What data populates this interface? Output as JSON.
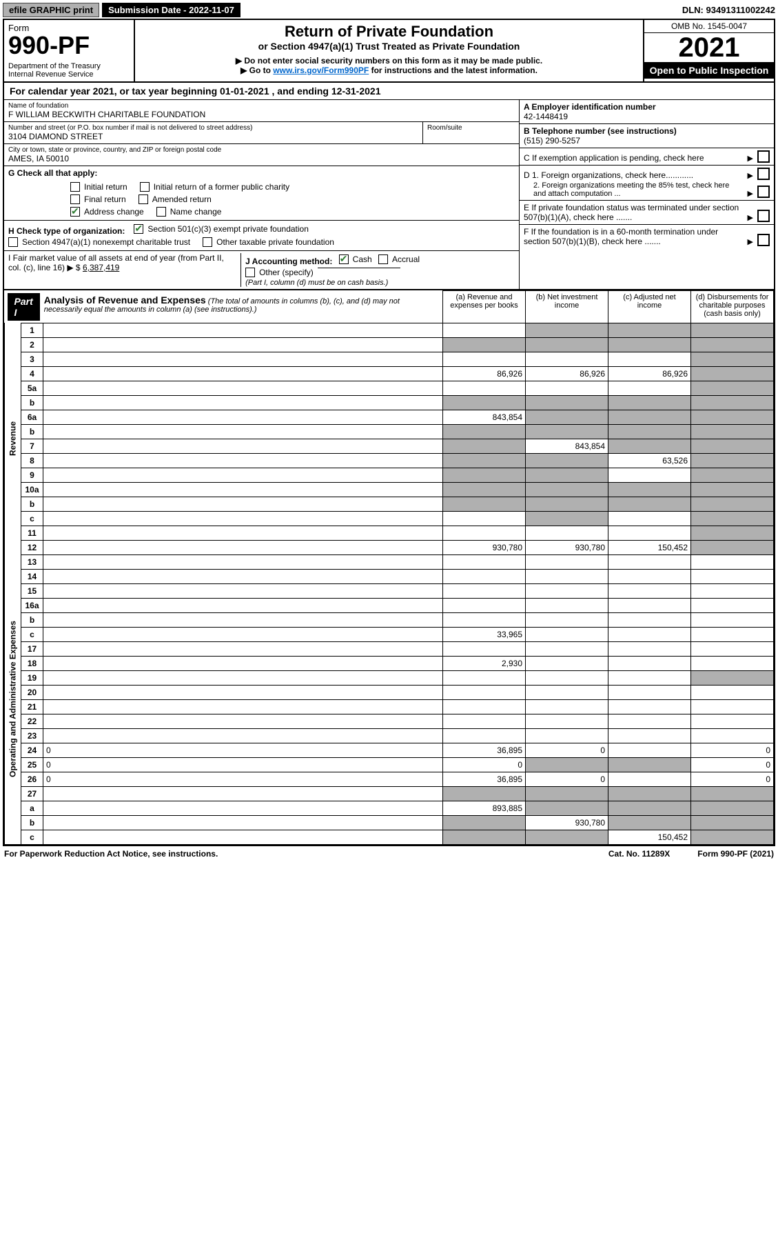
{
  "topbar": {
    "efile_label": "efile GRAPHIC print",
    "submission_label": "Submission Date - 2022-11-07",
    "dln_label": "DLN: 93491311002242"
  },
  "header": {
    "form_label": "Form",
    "form_number": "990-PF",
    "dept": "Department of the Treasury",
    "irs": "Internal Revenue Service",
    "title": "Return of Private Foundation",
    "subtitle": "or Section 4947(a)(1) Trust Treated as Private Foundation",
    "note1": "▶ Do not enter social security numbers on this form as it may be made public.",
    "note2_prefix": "▶ Go to ",
    "note2_link": "www.irs.gov/Form990PF",
    "note2_suffix": " for instructions and the latest information.",
    "omb": "OMB No. 1545-0047",
    "year": "2021",
    "open_public": "Open to Public Inspection"
  },
  "calyear": {
    "prefix": "For calendar year 2021, or tax year beginning ",
    "begin": "01-01-2021",
    "mid": " , and ending ",
    "end": "12-31-2021"
  },
  "entity": {
    "name_label": "Name of foundation",
    "name": "F WILLIAM BECKWITH CHARITABLE FOUNDATION",
    "addr_label": "Number and street (or P.O. box number if mail is not delivered to street address)",
    "addr": "3104 DIAMOND STREET",
    "room_label": "Room/suite",
    "city_label": "City or town, state or province, country, and ZIP or foreign postal code",
    "city": "AMES, IA  50010",
    "ein_label": "A Employer identification number",
    "ein": "42-1448419",
    "phone_label": "B Telephone number (see instructions)",
    "phone": "(515) 290-5257",
    "c_label": "C If exemption application is pending, check here",
    "d1_label": "D 1. Foreign organizations, check here............",
    "d2_label": "2. Foreign organizations meeting the 85% test, check here and attach computation ...",
    "e_label": "E If private foundation status was terminated under section 507(b)(1)(A), check here .......",
    "f_label": "F If the foundation is in a 60-month termination under section 507(b)(1)(B), check here .......",
    "g_label": "G Check all that apply:",
    "g_opts": {
      "initial": "Initial return",
      "initial_former": "Initial return of a former public charity",
      "final": "Final return",
      "amended": "Amended return",
      "addr_change": "Address change",
      "name_change": "Name change"
    },
    "h_label": "H Check type of organization:",
    "h_opts": {
      "s501c3": "Section 501(c)(3) exempt private foundation",
      "s4947": "Section 4947(a)(1) nonexempt charitable trust",
      "other_tax": "Other taxable private foundation"
    },
    "i_label": "I Fair market value of all assets at end of year (from Part II, col. (c), line 16) ▶ $",
    "i_value": "6,387,419",
    "j_label": "J Accounting method:",
    "j_cash": "Cash",
    "j_accr": "Accrual",
    "j_other": "Other (specify)",
    "j_note": "(Part I, column (d) must be on cash basis.)"
  },
  "part1": {
    "tab": "Part I",
    "title": "Analysis of Revenue and Expenses",
    "desc": "(The total of amounts in columns (b), (c), and (d) may not necessarily equal the amounts in column (a) (see instructions).)",
    "col_a": "(a) Revenue and expenses per books",
    "col_b": "(b) Net investment income",
    "col_c": "(c) Adjusted net income",
    "col_d": "(d) Disbursements for charitable purposes (cash basis only)",
    "side_rev": "Revenue",
    "side_exp": "Operating and Administrative Expenses",
    "rows": [
      {
        "n": "1",
        "d": "",
        "a": "",
        "b": "",
        "c": "",
        "shade_b": true,
        "shade_c": true,
        "shade_d": true
      },
      {
        "n": "2",
        "d": "",
        "a": "",
        "b": "",
        "c": "",
        "shade_a": true,
        "shade_b": true,
        "shade_c": true,
        "shade_d": true
      },
      {
        "n": "3",
        "d": "",
        "a": "",
        "b": "",
        "c": "",
        "shade_d": true
      },
      {
        "n": "4",
        "d": "",
        "a": "86,926",
        "b": "86,926",
        "c": "86,926",
        "shade_d": true
      },
      {
        "n": "5a",
        "d": "",
        "a": "",
        "b": "",
        "c": "",
        "shade_d": true
      },
      {
        "n": "b",
        "d": "",
        "a": "",
        "b": "",
        "c": "",
        "shade_a": true,
        "shade_b": true,
        "shade_c": true,
        "shade_d": true
      },
      {
        "n": "6a",
        "d": "",
        "a": "843,854",
        "b": "",
        "c": "",
        "shade_b": true,
        "shade_c": true,
        "shade_d": true
      },
      {
        "n": "b",
        "d": "",
        "a": "",
        "b": "",
        "c": "",
        "shade_a": true,
        "shade_b": true,
        "shade_c": true,
        "shade_d": true
      },
      {
        "n": "7",
        "d": "",
        "a": "",
        "b": "843,854",
        "c": "",
        "shade_a": true,
        "shade_c": true,
        "shade_d": true
      },
      {
        "n": "8",
        "d": "",
        "a": "",
        "b": "",
        "c": "63,526",
        "shade_a": true,
        "shade_b": true,
        "shade_d": true
      },
      {
        "n": "9",
        "d": "",
        "a": "",
        "b": "",
        "c": "",
        "shade_a": true,
        "shade_b": true,
        "shade_d": true
      },
      {
        "n": "10a",
        "d": "",
        "a": "",
        "b": "",
        "c": "",
        "shade_a": true,
        "shade_b": true,
        "shade_c": true,
        "shade_d": true
      },
      {
        "n": "b",
        "d": "",
        "a": "",
        "b": "",
        "c": "",
        "shade_a": true,
        "shade_b": true,
        "shade_c": true,
        "shade_d": true
      },
      {
        "n": "c",
        "d": "",
        "a": "",
        "b": "",
        "c": "",
        "shade_b": true,
        "shade_d": true
      },
      {
        "n": "11",
        "d": "",
        "a": "",
        "b": "",
        "c": "",
        "shade_d": true
      },
      {
        "n": "12",
        "d": "",
        "a": "930,780",
        "b": "930,780",
        "c": "150,452",
        "shade_d": true,
        "bold": true
      },
      {
        "n": "13",
        "d": "",
        "a": "",
        "b": "",
        "c": ""
      },
      {
        "n": "14",
        "d": "",
        "a": "",
        "b": "",
        "c": ""
      },
      {
        "n": "15",
        "d": "",
        "a": "",
        "b": "",
        "c": ""
      },
      {
        "n": "16a",
        "d": "",
        "a": "",
        "b": "",
        "c": ""
      },
      {
        "n": "b",
        "d": "",
        "a": "",
        "b": "",
        "c": ""
      },
      {
        "n": "c",
        "d": "",
        "a": "33,965",
        "b": "",
        "c": ""
      },
      {
        "n": "17",
        "d": "",
        "a": "",
        "b": "",
        "c": ""
      },
      {
        "n": "18",
        "d": "",
        "a": "2,930",
        "b": "",
        "c": ""
      },
      {
        "n": "19",
        "d": "",
        "a": "",
        "b": "",
        "c": "",
        "shade_d": true
      },
      {
        "n": "20",
        "d": "",
        "a": "",
        "b": "",
        "c": ""
      },
      {
        "n": "21",
        "d": "",
        "a": "",
        "b": "",
        "c": ""
      },
      {
        "n": "22",
        "d": "",
        "a": "",
        "b": "",
        "c": ""
      },
      {
        "n": "23",
        "d": "",
        "a": "",
        "b": "",
        "c": ""
      },
      {
        "n": "24",
        "d": "0",
        "a": "36,895",
        "b": "0",
        "c": ""
      },
      {
        "n": "25",
        "d": "0",
        "a": "0",
        "b": "",
        "c": "",
        "shade_b": true,
        "shade_c": true
      },
      {
        "n": "26",
        "d": "0",
        "a": "36,895",
        "b": "0",
        "c": ""
      },
      {
        "n": "27",
        "d": "",
        "a": "",
        "b": "",
        "c": "",
        "shade_a": true,
        "shade_b": true,
        "shade_c": true,
        "shade_d": true
      },
      {
        "n": "a",
        "d": "",
        "a": "893,885",
        "b": "",
        "c": "",
        "shade_b": true,
        "shade_c": true,
        "shade_d": true
      },
      {
        "n": "b",
        "d": "",
        "a": "",
        "b": "930,780",
        "c": "",
        "shade_a": true,
        "shade_c": true,
        "shade_d": true
      },
      {
        "n": "c",
        "d": "",
        "a": "",
        "b": "",
        "c": "150,452",
        "shade_a": true,
        "shade_b": true,
        "shade_d": true
      }
    ]
  },
  "footer": {
    "pra": "For Paperwork Reduction Act Notice, see instructions.",
    "cat": "Cat. No. 11289X",
    "formref": "Form 990-PF (2021)"
  }
}
